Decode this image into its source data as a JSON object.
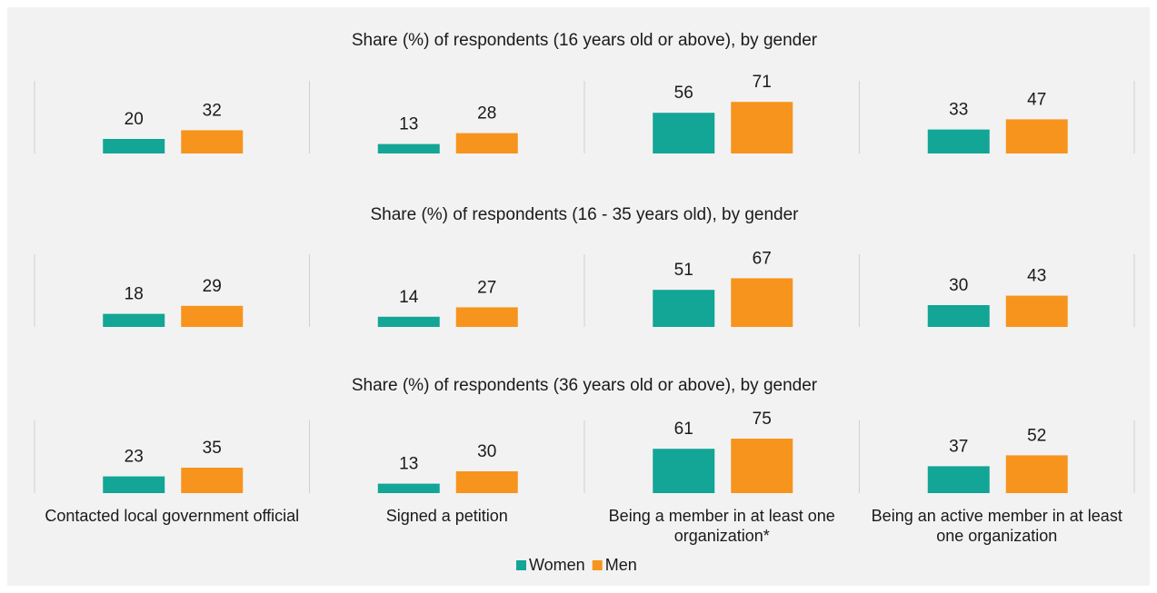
{
  "chart_data": [
    {
      "type": "bar",
      "title": "Share (%) of respondents (16 years old or above), by gender",
      "categories": [
        null,
        null,
        null,
        null
      ],
      "series": [
        {
          "color": "#13a596",
          "values": [
            20,
            13,
            56,
            33
          ]
        },
        {
          "color": "#f7941d",
          "values": [
            32,
            28,
            71,
            47
          ]
        }
      ],
      "ylim": [
        0,
        100
      ]
    },
    {
      "type": "bar",
      "title": "Share (%) of respondents (16 - 35 years old), by gender",
      "categories": [
        null,
        null,
        null,
        null
      ],
      "series": [
        {
          "color": "#13a596",
          "values": [
            18,
            14,
            51,
            30
          ]
        },
        {
          "color": "#f7941d",
          "values": [
            29,
            27,
            67,
            43
          ]
        }
      ],
      "ylim": [
        0,
        100
      ]
    },
    {
      "type": "bar",
      "title": "Share (%) of respondents (36 years old or above), by gender",
      "categories": [
        "Contacted local government official",
        "Signed a petition",
        "Being a member in at least one organization*",
        "Being an active  member in at least one organization"
      ],
      "series": [
        {
          "name": "Women",
          "color": "#13a596",
          "values": [
            23,
            13,
            61,
            37
          ]
        },
        {
          "name": "Men",
          "color": "#f7941d",
          "values": [
            35,
            30,
            75,
            52
          ]
        }
      ],
      "ylim": [
        0,
        100
      ],
      "legend": "bottom"
    }
  ]
}
